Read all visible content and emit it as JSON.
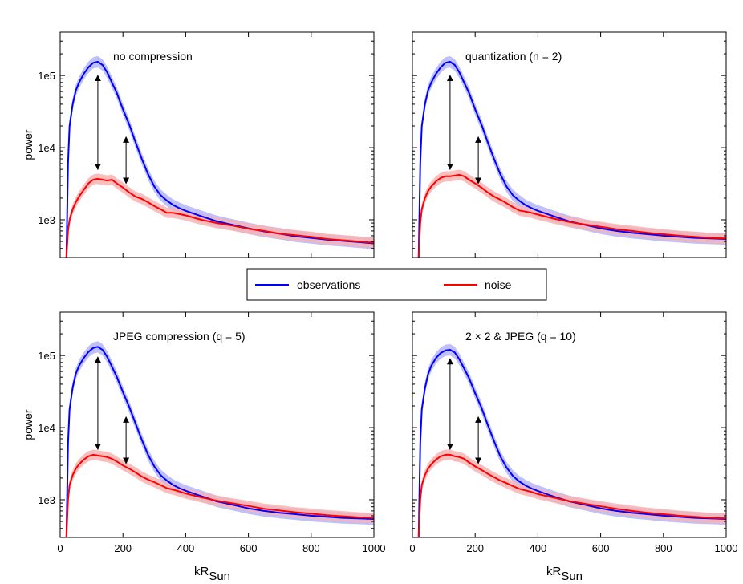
{
  "legend": {
    "placement": "center",
    "entries": [
      {
        "label": "observations",
        "color": "#0000ff"
      },
      {
        "label": "noise",
        "color": "#ff0000"
      }
    ]
  },
  "colors": {
    "observations": "#0000ff",
    "observations_band": "#b4b4f8",
    "noise": "#ff0000",
    "noise_band": "#f8b4b4",
    "axes": "#000000"
  },
  "chart_data": [
    {
      "type": "line",
      "title": "no compression",
      "xlabel": "",
      "ylabel": "power",
      "xlim": [
        0,
        1000
      ],
      "yscale": "log",
      "ylim": [
        300,
        400000
      ],
      "yticks": [
        {
          "value": 1000,
          "label": "1e3"
        },
        {
          "value": 10000,
          "label": "1e4"
        },
        {
          "value": 100000,
          "label": "1e5"
        }
      ],
      "xticks": [
        {
          "value": 0,
          "label": ""
        },
        {
          "value": 200,
          "label": ""
        },
        {
          "value": 400,
          "label": ""
        },
        {
          "value": 600,
          "label": ""
        },
        {
          "value": 800,
          "label": ""
        },
        {
          "value": 1000,
          "label": ""
        }
      ],
      "x": [
        20,
        25,
        30,
        40,
        50,
        60,
        75,
        90,
        105,
        120,
        135,
        150,
        165,
        180,
        200,
        220,
        240,
        260,
        280,
        300,
        320,
        340,
        360,
        380,
        400,
        450,
        500,
        550,
        600,
        650,
        700,
        750,
        800,
        850,
        900,
        950,
        1000
      ],
      "series": [
        {
          "name": "observations",
          "color": "#0000ff",
          "band": 0.2,
          "values": [
            300,
            6000,
            20000,
            40000,
            62000,
            80000,
            105000,
            130000,
            150000,
            155000,
            140000,
            110000,
            80000,
            58000,
            34000,
            21000,
            12000,
            7000,
            4300,
            2900,
            2200,
            1850,
            1600,
            1450,
            1330,
            1120,
            950,
            850,
            760,
            690,
            640,
            590,
            560,
            530,
            510,
            490,
            470
          ]
        },
        {
          "name": "noise",
          "color": "#ff0000",
          "band": 0.18,
          "values": [
            300,
            700,
            1000,
            1400,
            1750,
            2100,
            2600,
            3200,
            3600,
            3700,
            3600,
            3500,
            3600,
            3200,
            2800,
            2400,
            2100,
            1950,
            1750,
            1550,
            1400,
            1250,
            1250,
            1200,
            1150,
            1000,
            900,
            830,
            750,
            700,
            640,
            610,
            580,
            540,
            520,
            500,
            480
          ]
        }
      ]
    },
    {
      "type": "line",
      "title": "quantization (n = 2)",
      "xlabel": "",
      "ylabel": "",
      "xlim": [
        0,
        1000
      ],
      "yscale": "log",
      "ylim": [
        300,
        400000
      ],
      "yticks": [
        {
          "value": 1000,
          "label": ""
        },
        {
          "value": 10000,
          "label": ""
        },
        {
          "value": 100000,
          "label": ""
        }
      ],
      "xticks": [
        {
          "value": 0,
          "label": ""
        },
        {
          "value": 200,
          "label": ""
        },
        {
          "value": 400,
          "label": ""
        },
        {
          "value": 600,
          "label": ""
        },
        {
          "value": 800,
          "label": ""
        },
        {
          "value": 1000,
          "label": ""
        }
      ],
      "x": [
        20,
        25,
        30,
        40,
        50,
        60,
        75,
        90,
        105,
        120,
        135,
        150,
        165,
        180,
        200,
        220,
        240,
        260,
        280,
        300,
        320,
        340,
        360,
        380,
        400,
        450,
        500,
        550,
        600,
        650,
        700,
        750,
        800,
        850,
        900,
        950,
        1000
      ],
      "series": [
        {
          "name": "observations",
          "color": "#0000ff",
          "band": 0.2,
          "values": [
            300,
            6000,
            20000,
            40000,
            62000,
            80000,
            105000,
            130000,
            150000,
            155000,
            140000,
            110000,
            80000,
            58000,
            34000,
            21000,
            12000,
            7000,
            4300,
            2900,
            2200,
            1850,
            1600,
            1450,
            1330,
            1120,
            950,
            850,
            760,
            700,
            660,
            630,
            600,
            580,
            560,
            550,
            540
          ]
        },
        {
          "name": "noise",
          "color": "#ff0000",
          "band": 0.18,
          "values": [
            300,
            900,
            1400,
            2000,
            2500,
            2900,
            3400,
            3800,
            4000,
            4000,
            4100,
            4200,
            4000,
            3600,
            3200,
            2800,
            2400,
            2100,
            1900,
            1700,
            1500,
            1350,
            1300,
            1250,
            1180,
            1040,
            930,
            860,
            800,
            740,
            700,
            660,
            630,
            600,
            580,
            560,
            550
          ]
        }
      ]
    },
    {
      "type": "line",
      "title": "JPEG compression (q = 5)",
      "xlabel": "kR_Sun",
      "ylabel": "power",
      "xlim": [
        0,
        1000
      ],
      "yscale": "log",
      "ylim": [
        300,
        400000
      ],
      "yticks": [
        {
          "value": 1000,
          "label": "1e3"
        },
        {
          "value": 10000,
          "label": "1e4"
        },
        {
          "value": 100000,
          "label": "1e5"
        }
      ],
      "xticks": [
        {
          "value": 0,
          "label": "0"
        },
        {
          "value": 200,
          "label": "200"
        },
        {
          "value": 400,
          "label": "400"
        },
        {
          "value": 600,
          "label": "600"
        },
        {
          "value": 800,
          "label": "800"
        },
        {
          "value": 1000,
          "label": "1000"
        }
      ],
      "x": [
        20,
        25,
        30,
        40,
        50,
        60,
        75,
        90,
        105,
        120,
        135,
        150,
        165,
        180,
        200,
        220,
        240,
        260,
        280,
        300,
        320,
        340,
        360,
        380,
        400,
        450,
        500,
        550,
        600,
        650,
        700,
        750,
        800,
        850,
        900,
        950,
        1000
      ],
      "series": [
        {
          "name": "observations",
          "color": "#0000ff",
          "band": 0.2,
          "values": [
            300,
            6000,
            18000,
            36000,
            56000,
            72000,
            92000,
            112000,
            127000,
            132000,
            120000,
            95000,
            70000,
            51000,
            31000,
            19500,
            11500,
            6800,
            4200,
            2900,
            2200,
            1850,
            1600,
            1450,
            1330,
            1120,
            950,
            850,
            760,
            700,
            660,
            630,
            600,
            580,
            560,
            550,
            540
          ]
        },
        {
          "name": "noise",
          "color": "#ff0000",
          "band": 0.18,
          "values": [
            300,
            1000,
            1600,
            2200,
            2700,
            3100,
            3600,
            4000,
            4200,
            4100,
            4000,
            3900,
            3700,
            3400,
            3000,
            2700,
            2400,
            2100,
            1900,
            1750,
            1600,
            1450,
            1380,
            1300,
            1220,
            1080,
            970,
            890,
            820,
            750,
            710,
            670,
            640,
            610,
            590,
            570,
            560
          ]
        }
      ]
    },
    {
      "type": "line",
      "title": "2 × 2 & JPEG (q = 10)",
      "xlabel": "kR_Sun",
      "ylabel": "",
      "xlim": [
        0,
        1000
      ],
      "yscale": "log",
      "ylim": [
        300,
        400000
      ],
      "yticks": [
        {
          "value": 1000,
          "label": ""
        },
        {
          "value": 10000,
          "label": ""
        },
        {
          "value": 100000,
          "label": ""
        }
      ],
      "xticks": [
        {
          "value": 0,
          "label": "0"
        },
        {
          "value": 200,
          "label": "200"
        },
        {
          "value": 400,
          "label": "400"
        },
        {
          "value": 600,
          "label": "600"
        },
        {
          "value": 800,
          "label": "800"
        },
        {
          "value": 1000,
          "label": "1000"
        }
      ],
      "x": [
        20,
        25,
        30,
        40,
        50,
        60,
        75,
        90,
        105,
        120,
        135,
        150,
        165,
        180,
        200,
        220,
        240,
        260,
        280,
        300,
        320,
        340,
        360,
        380,
        400,
        450,
        500,
        550,
        600,
        650,
        700,
        750,
        800,
        850,
        900,
        950,
        1000
      ],
      "series": [
        {
          "name": "observations",
          "color": "#0000ff",
          "band": 0.2,
          "values": [
            300,
            6000,
            18000,
            35000,
            55000,
            72000,
            92000,
            108000,
            118000,
            120000,
            110000,
            88000,
            66000,
            49000,
            30000,
            19000,
            11000,
            6500,
            4000,
            2800,
            2150,
            1800,
            1580,
            1430,
            1320,
            1110,
            950,
            850,
            760,
            700,
            660,
            630,
            600,
            580,
            560,
            550,
            540
          ]
        },
        {
          "name": "noise",
          "color": "#ff0000",
          "band": 0.18,
          "values": [
            300,
            1000,
            1600,
            2200,
            2700,
            3100,
            3600,
            4000,
            4200,
            4200,
            4000,
            3900,
            3700,
            3300,
            2900,
            2600,
            2300,
            2050,
            1850,
            1700,
            1550,
            1420,
            1350,
            1280,
            1200,
            1070,
            960,
            880,
            810,
            750,
            700,
            660,
            630,
            600,
            580,
            560,
            550
          ]
        }
      ]
    }
  ],
  "arrows": [
    [
      {
        "x": 120,
        "y_low": 5000,
        "y_high": 100000
      },
      {
        "x": 210,
        "y_low": 3200,
        "y_high": 14000
      }
    ],
    [
      {
        "x": 120,
        "y_low": 5000,
        "y_high": 100000
      },
      {
        "x": 210,
        "y_low": 3200,
        "y_high": 14000
      }
    ],
    [
      {
        "x": 120,
        "y_low": 5000,
        "y_high": 95000
      },
      {
        "x": 210,
        "y_low": 3200,
        "y_high": 14000
      }
    ],
    [
      {
        "x": 120,
        "y_low": 5000,
        "y_high": 90000
      },
      {
        "x": 210,
        "y_low": 3200,
        "y_high": 14000
      }
    ]
  ]
}
